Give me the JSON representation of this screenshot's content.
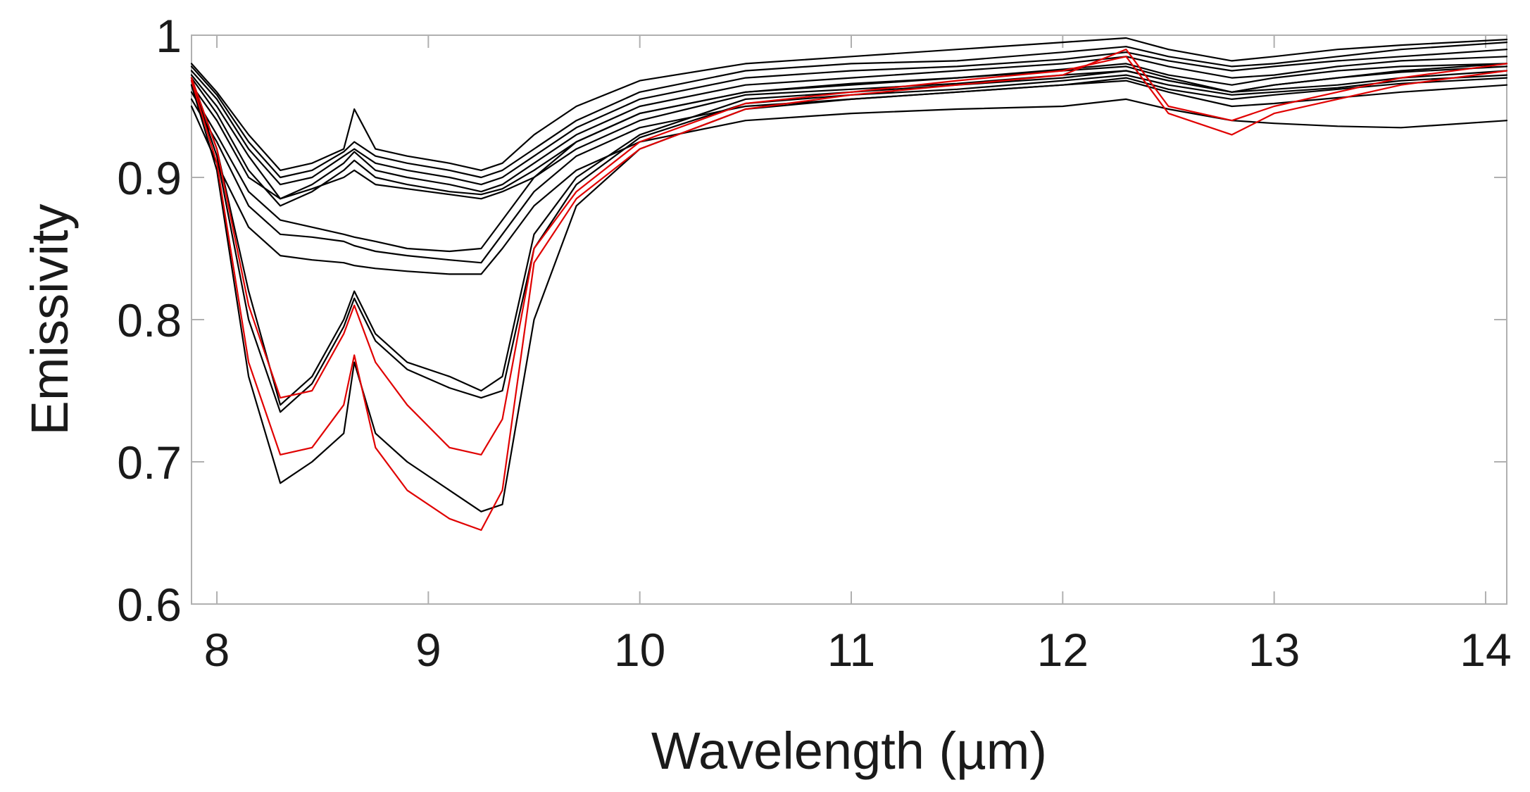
{
  "chart_data": {
    "type": "line",
    "title": "",
    "xlabel": "Wavelength (µm)",
    "ylabel": "Emissivity",
    "xlim": [
      7.88,
      14.1
    ],
    "ylim": [
      0.6,
      1.0
    ],
    "xticks": [
      8,
      9,
      10,
      11,
      12,
      13,
      14
    ],
    "yticks": [
      0.6,
      0.7,
      0.8,
      0.9,
      1.0
    ],
    "ytick_labels": [
      "0.6",
      "0.7",
      "0.8",
      "0.9",
      "1"
    ],
    "grid": false,
    "legend": "none",
    "colors": {
      "black_series": "#000000",
      "red_series": "#e00000",
      "axes": "#b0b0b0"
    },
    "x": [
      7.88,
      8.0,
      8.15,
      8.3,
      8.45,
      8.6,
      8.65,
      8.75,
      8.9,
      9.1,
      9.25,
      9.35,
      9.5,
      9.7,
      10.0,
      10.5,
      11.0,
      11.5,
      12.0,
      12.3,
      12.5,
      12.8,
      13.0,
      13.3,
      13.6,
      14.1
    ],
    "series": [
      {
        "color": "#000000",
        "values": [
          0.975,
          0.955,
          0.92,
          0.895,
          0.9,
          0.915,
          0.92,
          0.91,
          0.905,
          0.9,
          0.895,
          0.9,
          0.915,
          0.935,
          0.955,
          0.97,
          0.975,
          0.978,
          0.983,
          0.988,
          0.982,
          0.975,
          0.978,
          0.982,
          0.985,
          0.99
        ]
      },
      {
        "color": "#000000",
        "values": [
          0.972,
          0.95,
          0.915,
          0.885,
          0.895,
          0.91,
          0.918,
          0.905,
          0.9,
          0.895,
          0.89,
          0.895,
          0.91,
          0.93,
          0.95,
          0.965,
          0.97,
          0.975,
          0.98,
          0.985,
          0.978,
          0.97,
          0.972,
          0.978,
          0.982,
          0.985
        ]
      },
      {
        "color": "#000000",
        "values": [
          0.978,
          0.958,
          0.925,
          0.9,
          0.905,
          0.918,
          0.925,
          0.915,
          0.91,
          0.905,
          0.9,
          0.905,
          0.92,
          0.94,
          0.96,
          0.975,
          0.98,
          0.982,
          0.988,
          0.992,
          0.985,
          0.978,
          0.98,
          0.985,
          0.99,
          0.995
        ]
      },
      {
        "color": "#000000",
        "values": [
          0.97,
          0.945,
          0.905,
          0.88,
          0.89,
          0.905,
          0.912,
          0.9,
          0.895,
          0.89,
          0.888,
          0.892,
          0.905,
          0.925,
          0.945,
          0.96,
          0.966,
          0.97,
          0.976,
          0.98,
          0.972,
          0.965,
          0.97,
          0.975,
          0.978,
          0.98
        ]
      },
      {
        "color": "#000000",
        "values": [
          0.98,
          0.96,
          0.93,
          0.905,
          0.91,
          0.92,
          0.948,
          0.92,
          0.915,
          0.91,
          0.905,
          0.91,
          0.93,
          0.95,
          0.968,
          0.98,
          0.985,
          0.99,
          0.995,
          0.998,
          0.99,
          0.982,
          0.985,
          0.99,
          0.993,
          0.997
        ]
      },
      {
        "color": "#000000",
        "values": [
          0.965,
          0.94,
          0.9,
          0.885,
          0.892,
          0.9,
          0.905,
          0.895,
          0.892,
          0.888,
          0.885,
          0.89,
          0.9,
          0.92,
          0.94,
          0.958,
          0.962,
          0.966,
          0.972,
          0.975,
          0.968,
          0.96,
          0.965,
          0.97,
          0.974,
          0.978
        ]
      },
      {
        "color": "#000000",
        "values": [
          0.96,
          0.93,
          0.89,
          0.87,
          0.865,
          0.86,
          0.858,
          0.855,
          0.85,
          0.848,
          0.85,
          0.87,
          0.9,
          0.925,
          0.945,
          0.96,
          0.965,
          0.97,
          0.975,
          0.978,
          0.97,
          0.96,
          0.965,
          0.97,
          0.975,
          0.98
        ]
      },
      {
        "color": "#000000",
        "values": [
          0.955,
          0.925,
          0.88,
          0.86,
          0.858,
          0.855,
          0.852,
          0.848,
          0.845,
          0.842,
          0.84,
          0.86,
          0.89,
          0.915,
          0.935,
          0.95,
          0.955,
          0.96,
          0.965,
          0.968,
          0.96,
          0.95,
          0.952,
          0.956,
          0.96,
          0.965
        ]
      },
      {
        "color": "#000000",
        "values": [
          0.95,
          0.91,
          0.865,
          0.845,
          0.842,
          0.84,
          0.838,
          0.836,
          0.834,
          0.832,
          0.832,
          0.85,
          0.88,
          0.905,
          0.925,
          0.94,
          0.945,
          0.948,
          0.95,
          0.955,
          0.948,
          0.94,
          0.938,
          0.936,
          0.935,
          0.94
        ]
      },
      {
        "color": "#000000",
        "values": [
          0.97,
          0.92,
          0.82,
          0.74,
          0.76,
          0.8,
          0.82,
          0.79,
          0.77,
          0.76,
          0.75,
          0.76,
          0.86,
          0.9,
          0.93,
          0.955,
          0.96,
          0.965,
          0.97,
          0.975,
          0.968,
          0.96,
          0.962,
          0.965,
          0.97,
          0.975
        ]
      },
      {
        "color": "#000000",
        "values": [
          0.968,
          0.915,
          0.8,
          0.735,
          0.755,
          0.795,
          0.815,
          0.785,
          0.765,
          0.752,
          0.745,
          0.75,
          0.85,
          0.895,
          0.928,
          0.952,
          0.958,
          0.962,
          0.968,
          0.972,
          0.965,
          0.958,
          0.96,
          0.963,
          0.968,
          0.972
        ]
      },
      {
        "color": "#000000",
        "values": [
          0.965,
          0.905,
          0.76,
          0.685,
          0.7,
          0.72,
          0.77,
          0.72,
          0.7,
          0.68,
          0.665,
          0.67,
          0.8,
          0.88,
          0.92,
          0.948,
          0.955,
          0.96,
          0.965,
          0.97,
          0.962,
          0.955,
          0.958,
          0.962,
          0.966,
          0.97
        ]
      },
      {
        "color": "#e00000",
        "values": [
          0.97,
          0.92,
          0.81,
          0.745,
          0.75,
          0.79,
          0.81,
          0.77,
          0.74,
          0.71,
          0.705,
          0.73,
          0.85,
          0.89,
          0.925,
          0.952,
          0.96,
          0.968,
          0.975,
          0.985,
          0.945,
          0.93,
          0.945,
          0.955,
          0.965,
          0.975
        ]
      },
      {
        "color": "#e00000",
        "values": [
          0.968,
          0.91,
          0.77,
          0.705,
          0.71,
          0.74,
          0.775,
          0.71,
          0.68,
          0.66,
          0.652,
          0.68,
          0.84,
          0.885,
          0.92,
          0.948,
          0.958,
          0.965,
          0.972,
          0.99,
          0.95,
          0.94,
          0.95,
          0.96,
          0.97,
          0.98
        ]
      }
    ]
  }
}
